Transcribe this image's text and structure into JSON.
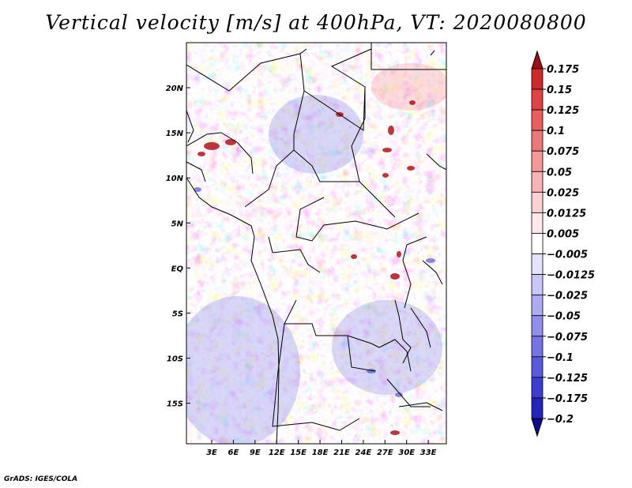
{
  "title": "Vertical velocity [m/s] at 400hPa, VT: 2020080800",
  "credit": "GrADS: IGES/COLA",
  "map": {
    "lon_range": [
      -0.5,
      35.5
    ],
    "lat_range": [
      -19.5,
      25
    ],
    "lon_ticks": [
      "3E",
      "6E",
      "9E",
      "12E",
      "15E",
      "18E",
      "21E",
      "24E",
      "27E",
      "30E",
      "33E"
    ],
    "lon_tick_values": [
      3,
      6,
      9,
      12,
      15,
      18,
      21,
      24,
      27,
      30,
      33
    ],
    "lat_ticks": [
      "20N",
      "15N",
      "10N",
      "5N",
      "EQ",
      "5S",
      "10S",
      "15S"
    ],
    "lat_tick_values": [
      20,
      15,
      10,
      5,
      0,
      -5,
      -10,
      -15
    ],
    "projection": "latlon"
  },
  "colorbar": {
    "labels": [
      "0.175",
      "0.15",
      "0.125",
      "0.1",
      "0.075",
      "0.05",
      "0.025",
      "0.0125",
      "0.005",
      "−0.005",
      "−0.0125",
      "−0.025",
      "−0.05",
      "−0.075",
      "−0.1",
      "−0.125",
      "−0.175",
      "−0.2"
    ],
    "colors": [
      "#b0151d",
      "#cd2a2a",
      "#e04343",
      "#e95d5d",
      "#ee7878",
      "#f39797",
      "#f7b3b3",
      "#fad1d1",
      "#fde9e9",
      "#ffffff",
      "#e3e3fb",
      "#c7c7f6",
      "#ababf0",
      "#8f8feb",
      "#7474e4",
      "#5959dd",
      "#3d3dd1",
      "#2424bb",
      "#0b0b9a"
    ],
    "top_arrow_color": "#9e0f15",
    "bottom_arrow_color": "#0a0a8a"
  }
}
